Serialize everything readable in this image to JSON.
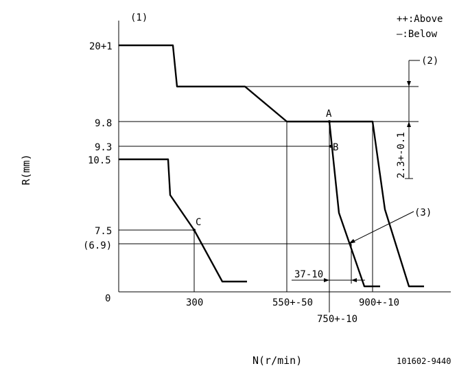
{
  "legend": {
    "above": "++:Above",
    "below": "—:Below"
  },
  "callouts": {
    "c1": "(1)",
    "c2": "(2)",
    "c3": "(3)"
  },
  "axes": {
    "ylabel": "R(mm)",
    "xlabel": "N(r/min)"
  },
  "y_ticks": {
    "t20": "20+1",
    "t98": "9.8",
    "t93": "9.3",
    "t105": "10.5",
    "t75": "7.5",
    "t69": "(6.9)",
    "t0": "0"
  },
  "x_ticks": {
    "t300": "300",
    "t550": "550+-50",
    "t750": "750+-10",
    "t900": "900+-10"
  },
  "points": {
    "A": "A",
    "B": "B",
    "C": "C"
  },
  "dims": {
    "d37": "37-10",
    "d23": "2.3+-0.1"
  },
  "part_no": "101602-9440"
}
